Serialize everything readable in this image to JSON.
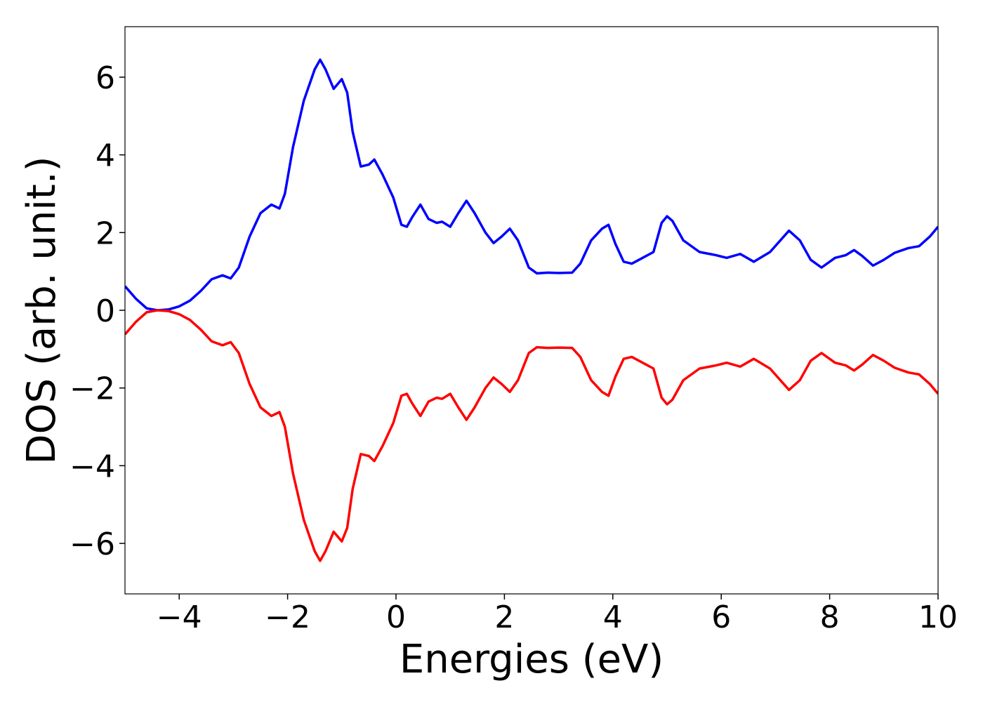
{
  "chart_data": {
    "type": "line",
    "xlabel": "Energies (eV)",
    "ylabel": "DOS (arb. unit.)",
    "x": [
      -5,
      -4.8,
      -4.6,
      -4.4,
      -4.2,
      -4.0,
      -3.8,
      -3.6,
      -3.4,
      -3.2,
      -3.05,
      -2.9,
      -2.7,
      -2.5,
      -2.3,
      -2.15,
      -2.05,
      -1.9,
      -1.7,
      -1.5,
      -1.4,
      -1.3,
      -1.15,
      -1.0,
      -0.9,
      -0.8,
      -0.65,
      -0.5,
      -0.4,
      -0.25,
      -0.05,
      0.1,
      0.2,
      0.3,
      0.45,
      0.6,
      0.75,
      0.85,
      1.0,
      1.15,
      1.3,
      1.45,
      1.65,
      1.8,
      1.95,
      2.1,
      2.25,
      2.45,
      2.6,
      2.8,
      3.0,
      3.25,
      3.4,
      3.6,
      3.8,
      3.92,
      4.05,
      4.2,
      4.35,
      4.55,
      4.75,
      4.9,
      5.0,
      5.1,
      5.3,
      5.6,
      5.9,
      6.1,
      6.35,
      6.6,
      6.9,
      7.25,
      7.45,
      7.65,
      7.85,
      8.1,
      8.3,
      8.45,
      8.6,
      8.8,
      9.0,
      9.2,
      9.45,
      9.65,
      9.85,
      10.0
    ],
    "series": [
      {
        "color": "#0000ff",
        "values": [
          0.62,
          0.3,
          0.05,
          0.0,
          0.02,
          0.1,
          0.25,
          0.5,
          0.8,
          0.9,
          0.82,
          1.1,
          1.9,
          2.5,
          2.72,
          2.62,
          3.0,
          4.2,
          5.4,
          6.2,
          6.45,
          6.2,
          5.7,
          5.95,
          5.6,
          4.6,
          3.7,
          3.75,
          3.88,
          3.5,
          2.9,
          2.2,
          2.15,
          2.4,
          2.72,
          2.35,
          2.25,
          2.28,
          2.15,
          2.5,
          2.82,
          2.5,
          2.0,
          1.73,
          1.9,
          2.1,
          1.8,
          1.1,
          0.95,
          0.97,
          0.96,
          0.97,
          1.2,
          1.8,
          2.1,
          2.2,
          1.7,
          1.25,
          1.2,
          1.35,
          1.5,
          2.25,
          2.42,
          2.3,
          1.8,
          1.5,
          1.42,
          1.35,
          1.45,
          1.25,
          1.5,
          2.05,
          1.8,
          1.3,
          1.1,
          1.35,
          1.42,
          1.55,
          1.4,
          1.15,
          1.3,
          1.48,
          1.6,
          1.65,
          1.9,
          2.15
        ]
      },
      {
        "color": "#ff0000",
        "values": [
          -0.62,
          -0.3,
          -0.05,
          0.0,
          -0.02,
          -0.1,
          -0.25,
          -0.5,
          -0.8,
          -0.9,
          -0.82,
          -1.1,
          -1.9,
          -2.5,
          -2.72,
          -2.62,
          -3.0,
          -4.2,
          -5.4,
          -6.2,
          -6.45,
          -6.2,
          -5.7,
          -5.95,
          -5.6,
          -4.6,
          -3.7,
          -3.75,
          -3.88,
          -3.5,
          -2.9,
          -2.2,
          -2.15,
          -2.4,
          -2.72,
          -2.35,
          -2.25,
          -2.28,
          -2.15,
          -2.5,
          -2.82,
          -2.5,
          -2.0,
          -1.73,
          -1.9,
          -2.1,
          -1.8,
          -1.1,
          -0.95,
          -0.97,
          -0.96,
          -0.97,
          -1.2,
          -1.8,
          -2.1,
          -2.2,
          -1.7,
          -1.25,
          -1.2,
          -1.35,
          -1.5,
          -2.25,
          -2.42,
          -2.3,
          -1.8,
          -1.5,
          -1.42,
          -1.35,
          -1.45,
          -1.25,
          -1.5,
          -2.05,
          -1.8,
          -1.3,
          -1.1,
          -1.35,
          -1.42,
          -1.55,
          -1.4,
          -1.15,
          -1.3,
          -1.48,
          -1.6,
          -1.65,
          -1.9,
          -2.15
        ]
      }
    ],
    "xlim": [
      -5,
      10
    ],
    "xticks": [
      {
        "value": -4,
        "label": "−4"
      },
      {
        "value": -2,
        "label": "−2"
      },
      0,
      2,
      4,
      6,
      8,
      10
    ],
    "ylim": [
      -7.3,
      7.3
    ],
    "yticks": [
      {
        "value": -6,
        "label": "−6"
      },
      {
        "value": -4,
        "label": "−4"
      },
      {
        "value": -2,
        "label": "−2"
      },
      0,
      2,
      4,
      6
    ]
  }
}
